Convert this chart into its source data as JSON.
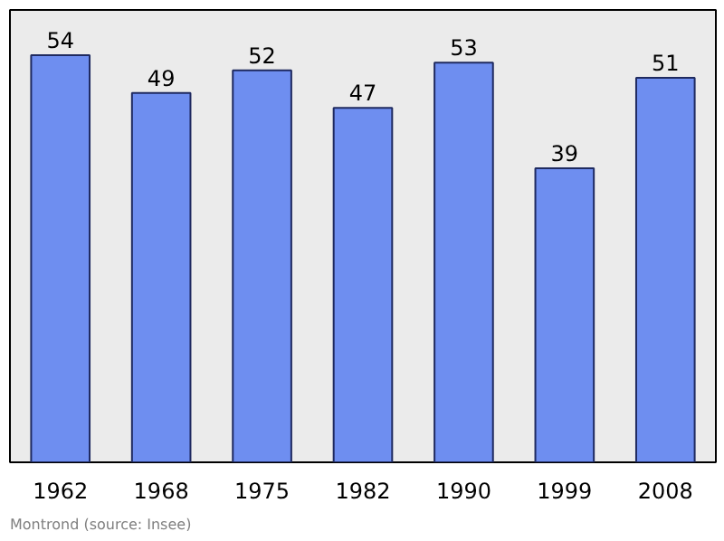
{
  "chart_data": {
    "type": "bar",
    "categories": [
      "1962",
      "1968",
      "1975",
      "1982",
      "1990",
      "1999",
      "2008"
    ],
    "values": [
      54,
      49,
      52,
      47,
      53,
      39,
      51
    ],
    "color": "#6e8ef0",
    "ylim": [
      0,
      60
    ],
    "tick_labels": "x",
    "grid": false,
    "data_labels": true,
    "annotations": [
      "Montrond    (source: Insee)"
    ]
  }
}
